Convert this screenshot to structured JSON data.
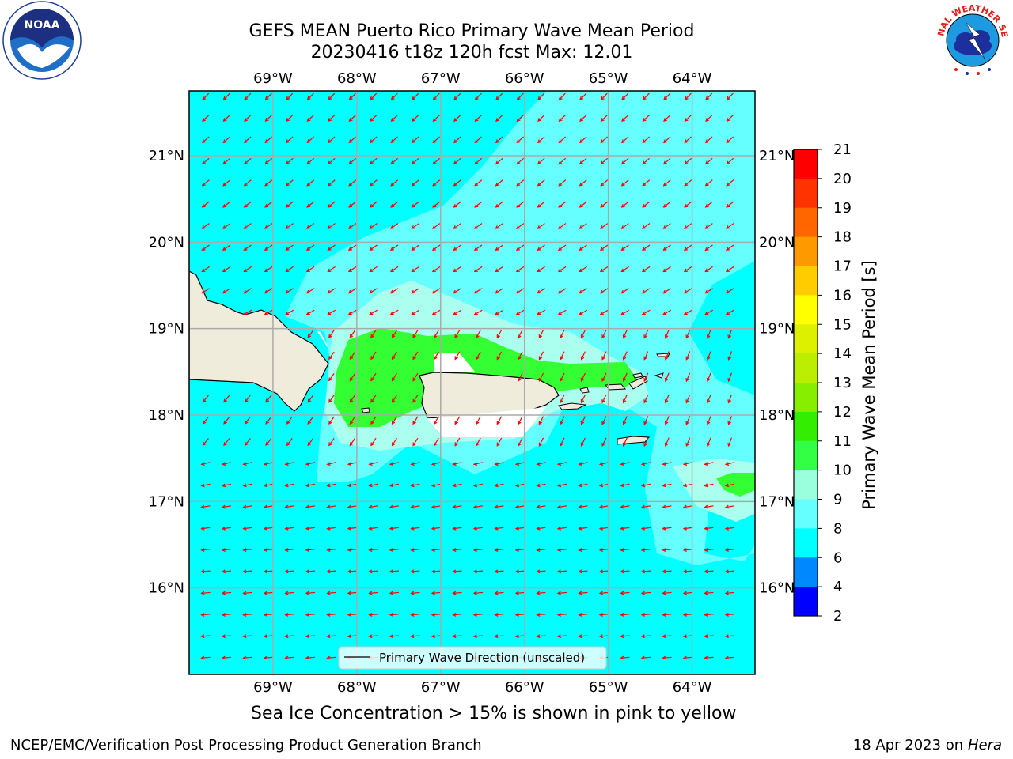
{
  "title": {
    "line1": "GEFS MEAN Puerto Rico Primary Wave Mean Period",
    "line2": "20230416 t18z 120h fcst   Max: 12.01"
  },
  "map": {
    "lon_labels": [
      "69°W",
      "68°W",
      "67°W",
      "66°W",
      "65°W",
      "64°W"
    ],
    "lon_values": [
      -69,
      -68,
      -67,
      -66,
      -65,
      -64
    ],
    "lat_labels": [
      "21°N",
      "20°N",
      "19°N",
      "18°N",
      "17°N",
      "16°N"
    ],
    "lat_values": [
      21,
      20,
      19,
      18,
      17,
      16
    ],
    "extent": {
      "lon_min": -70,
      "lon_max": -63.25,
      "lat_min": 15,
      "lat_max": 21.75
    },
    "legend_label": "Primary Wave Direction (unscaled)",
    "arrow_color": "#ff0000",
    "land_color": "#efecdc"
  },
  "colorbar": {
    "label": "Primary Wave Mean Period [s]",
    "ticks": [
      "21",
      "20",
      "19",
      "18",
      "17",
      "16",
      "15",
      "14",
      "13",
      "12",
      "11",
      "10",
      "9",
      "8",
      "6",
      "4",
      "2"
    ],
    "colors": [
      "#ff0000",
      "#ff3300",
      "#ff6600",
      "#ff9900",
      "#ffcc00",
      "#ffff00",
      "#ddf000",
      "#bbee00",
      "#88ee00",
      "#33ee00",
      "#33ff44",
      "#99ffdd",
      "#66ffff",
      "#00ffff",
      "#0088ff",
      "#0000ff"
    ]
  },
  "captions": {
    "ice": "Sea Ice Concentration > 15% is shown in pink to yellow",
    "footer_left": "NCEP/EMC/Verification Post Processing Product Generation Branch",
    "footer_date": "18 Apr 2023 on",
    "footer_machine": "Hera"
  },
  "logos": {
    "noaa_text": "NOAA",
    "nws_text": "NATIONAL WEATHER SERVICE"
  }
}
